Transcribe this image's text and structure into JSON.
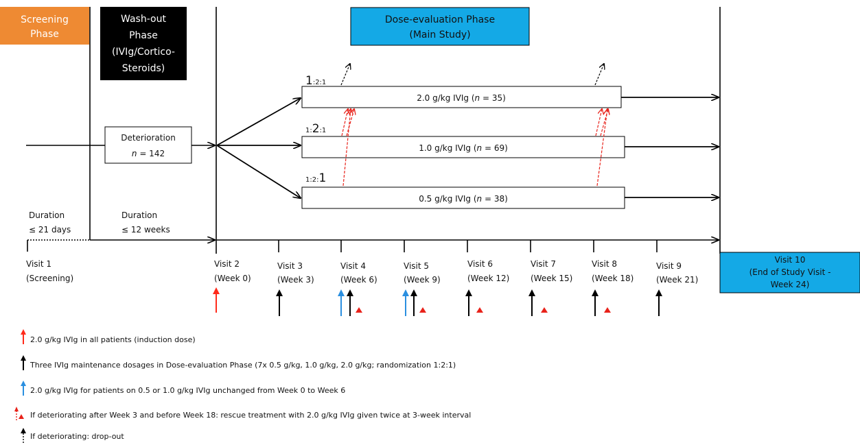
{
  "colors": {
    "screening": "#ee8a33",
    "washout": "#000000",
    "dose_eval": "#14a9e6",
    "induction_arrow": "#ff2a1a",
    "maintenance_arrow": "#000000",
    "catchup_arrow": "#2a8fe0",
    "rescue": "#e8221a"
  },
  "phases": {
    "screening": {
      "line1": "Screening",
      "line2": "Phase"
    },
    "washout": {
      "line1": "Wash-out",
      "line2": "Phase",
      "line3": "(IVIg/Cortico-",
      "line4": "Steroids)"
    },
    "dose_eval": {
      "line1": "Dose-evaluation Phase",
      "line2": "(Main Study)"
    }
  },
  "deterioration": {
    "line1": "Deterioration",
    "line2_italic": "n",
    "line2_rest": " = 142"
  },
  "ratios": [
    {
      "a": "1",
      "b": ":2:1"
    },
    {
      "a": "1:",
      "b": "2",
      "c": ":1"
    },
    {
      "a": "1:2:",
      "b": "1"
    }
  ],
  "arms": [
    {
      "dose": "2.0 g/kg IVIg (",
      "n_label": "n",
      "n_value": " = 35)"
    },
    {
      "dose": "1.0 g/kg IVIg (",
      "n_label": "n",
      "n_value": " = 69)"
    },
    {
      "dose": "0.5 g/kg IVIg (",
      "n_label": "n",
      "n_value": " = 38)"
    }
  ],
  "durations": [
    {
      "line1": "Duration",
      "line2": "≤ 21 days"
    },
    {
      "line1": "Duration",
      "line2": "≤ 12 weeks"
    }
  ],
  "visits": [
    {
      "name": "Visit 1",
      "sub": "(Screening)"
    },
    {
      "name": "Visit 2",
      "sub": "(Week 0)"
    },
    {
      "name": "Visit 3",
      "sub": "(Week 3)"
    },
    {
      "name": "Visit 4",
      "sub": "(Week 6)"
    },
    {
      "name": "Visit 5",
      "sub": "(Week 9)"
    },
    {
      "name": "Visit 6",
      "sub": "(Week 12)"
    },
    {
      "name": "Visit 7",
      "sub": "(Week 15)"
    },
    {
      "name": "Visit 8",
      "sub": "(Week 18)"
    },
    {
      "name": "Visit 9",
      "sub": "(Week 21)"
    }
  ],
  "visit10": {
    "line1": "Visit 10",
    "line2": "(End of Study Visit -",
    "line3": "Week 24)"
  },
  "legend": [
    "2.0 g/kg IVIg in all patients (induction dose)",
    "Three IVIg maintenance dosages in Dose-evaluation Phase (7x 0.5 g/kg, 1.0 g/kg, 2.0 g/kg; randomization 1:2:1)",
    "2.0 g/kg IVIg for patients on 0.5 or 1.0 g/kg IVIg unchanged from Week 0 to Week 6",
    "If deteriorating after Week 3 and before Week 18: rescue treatment with 2.0 g/kg IVIg given twice at 3-week interval",
    "If deteriorating: drop-out"
  ]
}
